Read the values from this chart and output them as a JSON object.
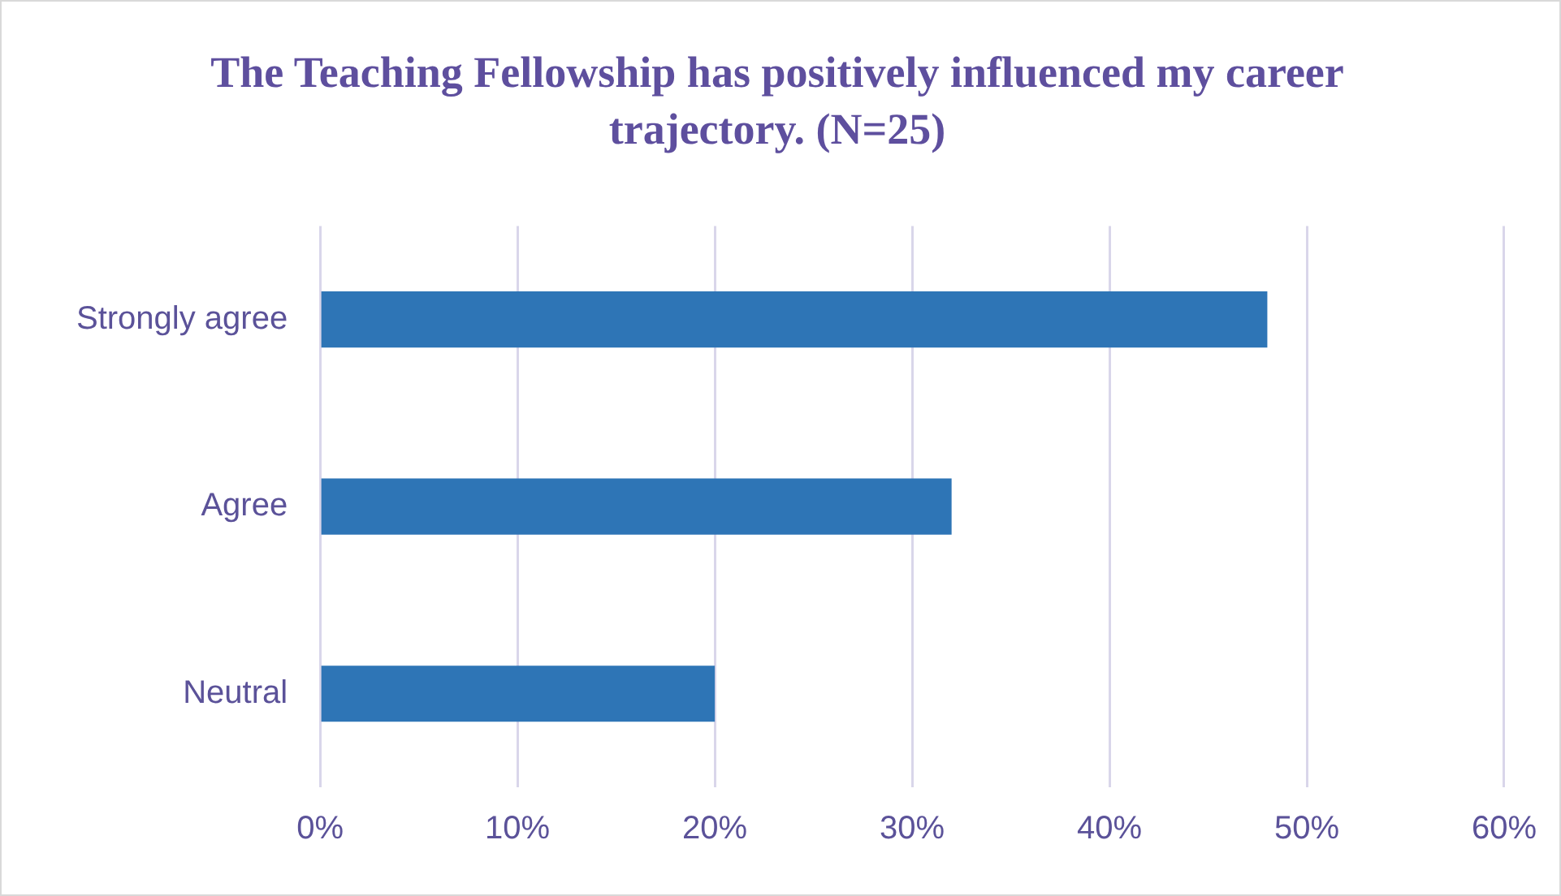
{
  "chart_data": {
    "type": "bar",
    "orientation": "horizontal",
    "title": "The Teaching Fellowship has positively influenced my career trajectory. (N=25)",
    "categories": [
      "Strongly agree",
      "Agree",
      "Neutral"
    ],
    "values": [
      48,
      32,
      20
    ],
    "color": "#2e75b6",
    "xlim": [
      0,
      60
    ],
    "xticks": [
      {
        "value": 0,
        "label": "0%"
      },
      {
        "value": 10,
        "label": "10%"
      },
      {
        "value": 20,
        "label": "20%"
      },
      {
        "value": 30,
        "label": "30%"
      },
      {
        "value": 40,
        "label": "40%"
      },
      {
        "value": 50,
        "label": "50%"
      },
      {
        "value": 60,
        "label": "60%"
      }
    ],
    "grid": "x",
    "legend": false
  }
}
